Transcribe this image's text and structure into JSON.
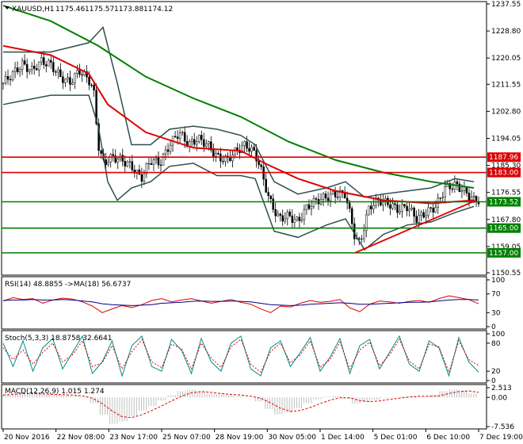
{
  "chart_data": [
    {
      "type": "candlestick",
      "panel": "price",
      "symbol_label": "XAUUSD,H1",
      "ohlc_readout": [
        "1175.46",
        "1175.57",
        "1173.88",
        "1174.12"
      ],
      "ylim": [
        1150.55,
        1237.55
      ],
      "y_tick_labels": [
        "1237.55",
        "1228.80",
        "1220.05",
        "1211.55",
        "1202.80",
        "1194.05",
        "1185.30",
        "1176.55",
        "1167.80",
        "1159.05",
        "1150.55"
      ],
      "y_tick_values": [
        1237.55,
        1228.8,
        1220.05,
        1211.55,
        1202.8,
        1194.05,
        1185.3,
        1176.55,
        1167.8,
        1159.05,
        1150.55
      ],
      "levels": [
        {
          "value": 1187.96,
          "label": "1187.96",
          "color": "#dd0000",
          "style": "resistance"
        },
        {
          "value": 1183.0,
          "label": "1183.00",
          "color": "#dd0000",
          "style": "resistance"
        },
        {
          "value": 1173.52,
          "label": "1173.52",
          "color": "#008000",
          "style": "support"
        },
        {
          "value": 1165.0,
          "label": "1165.00",
          "color": "#008000",
          "style": "support"
        },
        {
          "value": 1157.0,
          "label": "1157.00",
          "color": "#008000",
          "style": "support"
        }
      ],
      "trendline": {
        "color": "#dd0000",
        "from": [
          0.74,
          1157.0
        ],
        "to": [
          0.995,
          1174.0
        ]
      },
      "series_path": {
        "close": [
          [
            0,
            1212
          ],
          [
            0.02,
            1215
          ],
          [
            0.04,
            1218
          ],
          [
            0.06,
            1216
          ],
          [
            0.08,
            1219
          ],
          [
            0.1,
            1218
          ],
          [
            0.12,
            1214
          ],
          [
            0.14,
            1212
          ],
          [
            0.16,
            1216
          ],
          [
            0.18,
            1213
          ],
          [
            0.19,
            1210
          ],
          [
            0.2,
            1192
          ],
          [
            0.21,
            1186
          ],
          [
            0.23,
            1188
          ],
          [
            0.25,
            1187
          ],
          [
            0.27,
            1185
          ],
          [
            0.29,
            1181
          ],
          [
            0.31,
            1187
          ],
          [
            0.33,
            1186
          ],
          [
            0.35,
            1192
          ],
          [
            0.37,
            1196
          ],
          [
            0.39,
            1192
          ],
          [
            0.41,
            1194
          ],
          [
            0.43,
            1192
          ],
          [
            0.45,
            1188
          ],
          [
            0.47,
            1187
          ],
          [
            0.49,
            1190
          ],
          [
            0.51,
            1192
          ],
          [
            0.53,
            1189
          ],
          [
            0.54,
            1185
          ],
          [
            0.56,
            1174
          ],
          [
            0.58,
            1168
          ],
          [
            0.6,
            1169
          ],
          [
            0.62,
            1167
          ],
          [
            0.64,
            1172
          ],
          [
            0.66,
            1174
          ],
          [
            0.68,
            1175
          ],
          [
            0.7,
            1176
          ],
          [
            0.72,
            1176
          ],
          [
            0.74,
            1162
          ],
          [
            0.75,
            1160
          ],
          [
            0.77,
            1172
          ],
          [
            0.79,
            1174
          ],
          [
            0.81,
            1173
          ],
          [
            0.83,
            1171
          ],
          [
            0.85,
            1172
          ],
          [
            0.87,
            1168
          ],
          [
            0.89,
            1170
          ],
          [
            0.91,
            1172
          ],
          [
            0.93,
            1178
          ],
          [
            0.95,
            1179
          ],
          [
            0.97,
            1177
          ],
          [
            0.99,
            1174
          ]
        ],
        "ma_red": [
          [
            0,
            1224
          ],
          [
            0.1,
            1221
          ],
          [
            0.18,
            1215
          ],
          [
            0.22,
            1205
          ],
          [
            0.3,
            1196
          ],
          [
            0.4,
            1191
          ],
          [
            0.5,
            1190
          ],
          [
            0.55,
            1186
          ],
          [
            0.62,
            1181
          ],
          [
            0.7,
            1177
          ],
          [
            0.8,
            1174
          ],
          [
            0.9,
            1173
          ],
          [
            0.99,
            1174
          ]
        ],
        "ma_green": [
          [
            0,
            1237
          ],
          [
            0.1,
            1232
          ],
          [
            0.2,
            1224
          ],
          [
            0.3,
            1214
          ],
          [
            0.4,
            1207
          ],
          [
            0.5,
            1201
          ],
          [
            0.6,
            1193
          ],
          [
            0.7,
            1187
          ],
          [
            0.8,
            1183
          ],
          [
            0.9,
            1180
          ],
          [
            0.99,
            1178
          ]
        ],
        "bb_upper": [
          [
            0,
            1222
          ],
          [
            0.1,
            1222
          ],
          [
            0.18,
            1225
          ],
          [
            0.21,
            1230
          ],
          [
            0.24,
            1212
          ],
          [
            0.27,
            1192
          ],
          [
            0.31,
            1192
          ],
          [
            0.35,
            1197
          ],
          [
            0.4,
            1198
          ],
          [
            0.45,
            1197
          ],
          [
            0.5,
            1195
          ],
          [
            0.53,
            1192
          ],
          [
            0.57,
            1180
          ],
          [
            0.62,
            1176
          ],
          [
            0.68,
            1178
          ],
          [
            0.72,
            1180
          ],
          [
            0.76,
            1175
          ],
          [
            0.8,
            1176
          ],
          [
            0.85,
            1177
          ],
          [
            0.9,
            1178
          ],
          [
            0.95,
            1181
          ],
          [
            0.99,
            1180
          ]
        ],
        "bb_lower": [
          [
            0,
            1205
          ],
          [
            0.1,
            1208
          ],
          [
            0.18,
            1208
          ],
          [
            0.2,
            1198
          ],
          [
            0.22,
            1180
          ],
          [
            0.24,
            1174
          ],
          [
            0.27,
            1178
          ],
          [
            0.31,
            1180
          ],
          [
            0.35,
            1185
          ],
          [
            0.4,
            1186
          ],
          [
            0.45,
            1182
          ],
          [
            0.5,
            1182
          ],
          [
            0.53,
            1181
          ],
          [
            0.57,
            1164
          ],
          [
            0.62,
            1162
          ],
          [
            0.68,
            1166
          ],
          [
            0.72,
            1168
          ],
          [
            0.76,
            1158
          ],
          [
            0.8,
            1163
          ],
          [
            0.85,
            1166
          ],
          [
            0.9,
            1167
          ],
          [
            0.95,
            1170
          ],
          [
            0.99,
            1172
          ]
        ]
      }
    },
    {
      "type": "line",
      "panel": "rsi",
      "label": "RSI(14) 48.8855 ->MA(18) 56.6737",
      "ylim": [
        0,
        100
      ],
      "y_tick_labels": [
        "100",
        "70",
        "30",
        "0"
      ],
      "y_tick_values": [
        100,
        70,
        30,
        0
      ],
      "series": [
        {
          "name": "RSI(14)",
          "color": "#dd0000",
          "values": [
            55,
            62,
            58,
            60,
            50,
            57,
            61,
            59,
            53,
            44,
            30,
            38,
            45,
            41,
            47,
            56,
            60,
            53,
            57,
            60,
            55,
            50,
            54,
            58,
            52,
            48,
            38,
            30,
            44,
            42,
            50,
            56,
            52,
            54,
            58,
            40,
            32,
            48,
            55,
            53,
            50,
            54,
            56,
            52,
            60,
            66,
            62,
            58,
            49
          ]
        },
        {
          "name": "MA(18)",
          "color": "#00008b",
          "values": [
            56,
            57,
            57,
            58,
            57,
            57,
            58,
            57,
            55,
            53,
            49,
            47,
            46,
            45,
            46,
            47,
            50,
            51,
            52,
            54,
            55,
            54,
            54,
            55,
            54,
            53,
            50,
            47,
            46,
            45,
            46,
            48,
            49,
            50,
            51,
            50,
            48,
            48,
            49,
            50,
            51,
            52,
            52,
            53,
            55,
            57,
            58,
            58,
            57
          ]
        }
      ]
    },
    {
      "type": "line",
      "panel": "stoch",
      "label": "Stoch(5,3,3) 18.8758 32.6641",
      "ylim": [
        0,
        100
      ],
      "y_tick_labels": [
        "100",
        "80",
        "20",
        "0"
      ],
      "y_tick_values": [
        100,
        80,
        20,
        0
      ],
      "series": [
        {
          "name": "Stoch %K",
          "color": "#008b8b",
          "values": [
            80,
            30,
            85,
            20,
            70,
            90,
            25,
            60,
            95,
            15,
            40,
            85,
            10,
            75,
            95,
            30,
            20,
            88,
            65,
            15,
            90,
            40,
            20,
            80,
            95,
            25,
            10,
            70,
            85,
            30,
            60,
            92,
            20,
            50,
            90,
            15,
            75,
            88,
            25,
            60,
            95,
            35,
            20,
            85,
            70,
            10,
            92,
            40,
            18
          ]
        },
        {
          "name": "Stoch %D",
          "color": "#dd0000",
          "values": [
            70,
            45,
            65,
            35,
            60,
            80,
            40,
            55,
            85,
            30,
            38,
            75,
            25,
            62,
            88,
            40,
            28,
            78,
            68,
            25,
            80,
            48,
            28,
            72,
            88,
            35,
            18,
            62,
            80,
            38,
            55,
            85,
            28,
            45,
            82,
            25,
            65,
            82,
            32,
            55,
            88,
            42,
            25,
            78,
            72,
            18,
            85,
            45,
            32
          ]
        }
      ]
    },
    {
      "type": "bar",
      "panel": "macd",
      "label": "MACD(12,26,9) 1.015 1.274",
      "ylim": [
        -7.536,
        2.513
      ],
      "y_tick_labels": [
        "2.513",
        "0.00",
        "-7.536"
      ],
      "y_tick_values": [
        2.513,
        0.0,
        -7.536
      ],
      "series": [
        {
          "name": "MACD histogram",
          "color": "#c0c0c0",
          "values": [
            0.8,
            1.0,
            1.1,
            0.9,
            0.7,
            0.8,
            0.6,
            0.4,
            0.2,
            -1.5,
            -4.5,
            -6.8,
            -6.2,
            -4.8,
            -3.4,
            -2.2,
            -0.8,
            0.6,
            1.6,
            2.0,
            1.5,
            1.0,
            0.8,
            0.6,
            0.3,
            0.0,
            -1.0,
            -3.0,
            -4.4,
            -4.0,
            -2.8,
            -1.5,
            -0.5,
            0.2,
            0.4,
            -0.4,
            -1.6,
            -1.2,
            -0.6,
            -0.2,
            0.0,
            0.3,
            0.4,
            0.2,
            0.6,
            1.6,
            2.0,
            1.8,
            1.0
          ]
        },
        {
          "name": "Signal",
          "color": "#dd0000",
          "values": [
            0.6,
            0.8,
            1.0,
            1.0,
            0.9,
            0.8,
            0.7,
            0.6,
            0.4,
            -0.2,
            -1.6,
            -3.5,
            -5.0,
            -5.2,
            -4.5,
            -3.4,
            -2.2,
            -0.9,
            0.3,
            1.2,
            1.5,
            1.3,
            1.0,
            0.8,
            0.6,
            0.3,
            -0.2,
            -1.4,
            -2.8,
            -3.6,
            -3.4,
            -2.6,
            -1.6,
            -0.7,
            -0.1,
            -0.1,
            -0.8,
            -1.1,
            -0.9,
            -0.5,
            -0.2,
            0.1,
            0.3,
            0.3,
            0.4,
            1.0,
            1.5,
            1.7,
            1.3
          ]
        }
      ]
    }
  ],
  "x_axis": {
    "labels": [
      "20 Nov 2016",
      "22 Nov 08:00",
      "23 Nov 17:00",
      "25 Nov 07:00",
      "28 Nov 19:00",
      "30 Nov 05:00",
      "1 Dec 14:00",
      "5 Dec 01:00",
      "6 Dec 10:00",
      "7 Dec 19:00"
    ]
  },
  "colors": {
    "up": "#008000",
    "down": "#dd0000",
    "candle": "#000000",
    "bb": "#2f4f4f"
  }
}
